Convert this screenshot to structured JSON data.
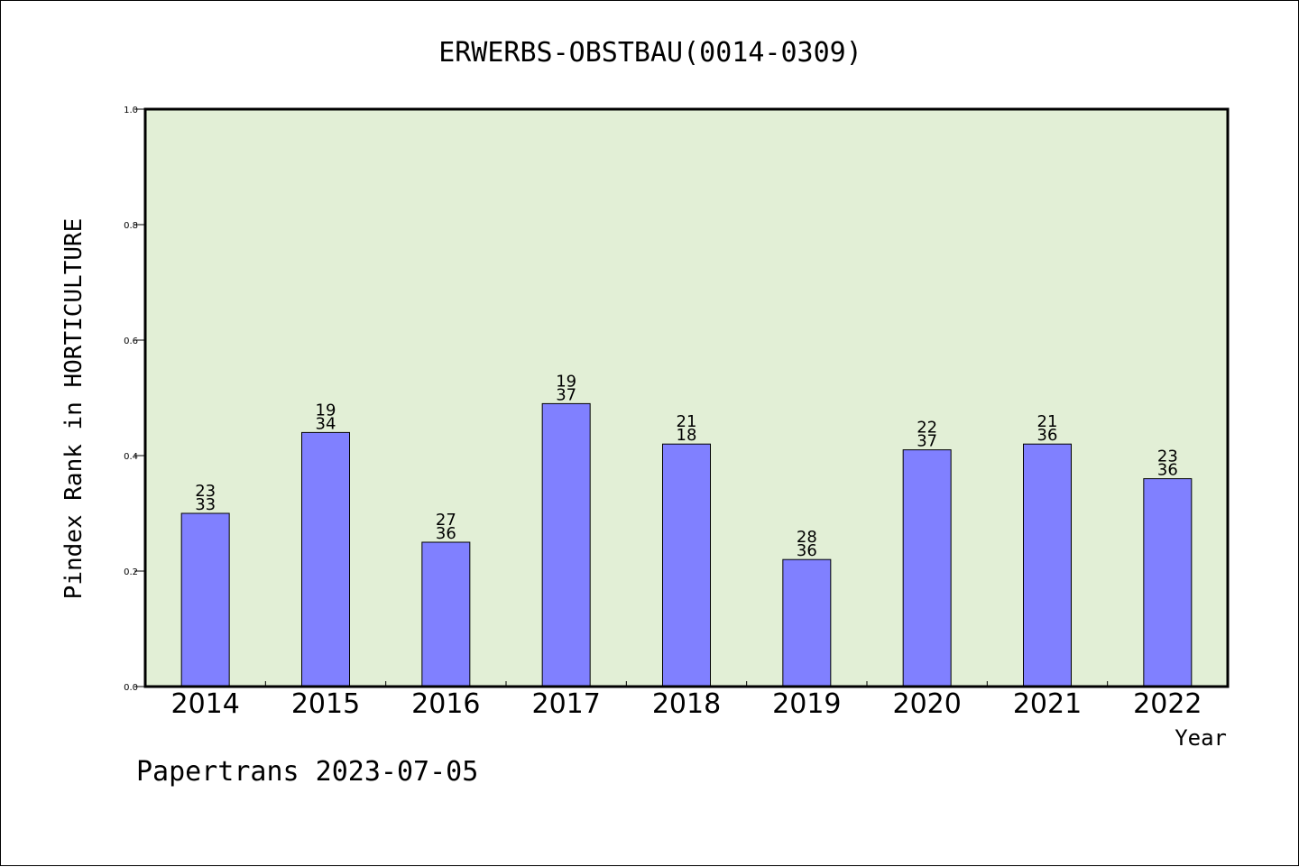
{
  "chart_data": {
    "type": "bar",
    "title": "ERWERBS-OBSTBAU(0014-0309)",
    "xlabel": "Year",
    "ylabel": "Pindex Rank in HORTICULTURE",
    "ylim": [
      0,
      1.0
    ],
    "yticks": [
      "0.0",
      "0.2",
      "0.4",
      "0.6",
      "0.8",
      "1.0"
    ],
    "categories": [
      "2014",
      "2015",
      "2016",
      "2017",
      "2018",
      "2019",
      "2020",
      "2021",
      "2022"
    ],
    "values": [
      0.3,
      0.44,
      0.25,
      0.49,
      0.42,
      0.22,
      0.41,
      0.42,
      0.36
    ],
    "labels_top": [
      "23",
      "19",
      "27",
      "19",
      "21",
      "28",
      "22",
      "21",
      "23"
    ],
    "labels_bottom": [
      "33",
      "34",
      "36",
      "37",
      "18",
      "36",
      "37",
      "36",
      "36"
    ],
    "grid": false,
    "colors": {
      "bar": "#8080ff",
      "plot_bg": "#e2efd6"
    }
  },
  "footer": "Papertrans 2023-07-05"
}
